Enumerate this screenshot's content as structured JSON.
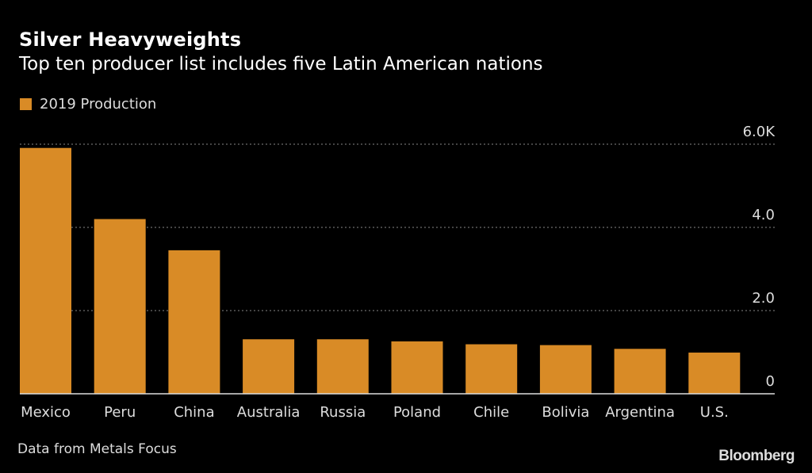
{
  "header": {
    "title": "Silver Heavyweights",
    "subtitle": "Top ten producer list includes five Latin American nations"
  },
  "footer": {
    "source": "Data from Metals Focus",
    "brand": "Bloomberg"
  },
  "colors": {
    "bar": "#d98b26",
    "grid": "#888888",
    "axis": "#dddddd",
    "background": "#000000"
  },
  "chart_data": {
    "type": "bar",
    "title": "Silver Heavyweights",
    "subtitle": "Top ten producer list includes five Latin American nations",
    "xlabel": "",
    "ylabel": "",
    "categories": [
      "Mexico",
      "Peru",
      "China",
      "Australia",
      "Russia",
      "Poland",
      "Chile",
      "Bolivia",
      "Argentina",
      "U.S."
    ],
    "series": [
      {
        "name": "2019 Production",
        "values": [
          5910,
          4200,
          3450,
          1310,
          1310,
          1260,
          1190,
          1170,
          1080,
          990
        ]
      }
    ],
    "ylim": [
      0,
      6000
    ],
    "yticks": [
      0,
      2000,
      4000,
      6000
    ],
    "ytick_labels": [
      "0",
      "2.0",
      "4.0",
      "6.0K"
    ],
    "y_axis_side": "right",
    "grid": true,
    "legend": "top-left",
    "source": "Data from Metals Focus"
  }
}
